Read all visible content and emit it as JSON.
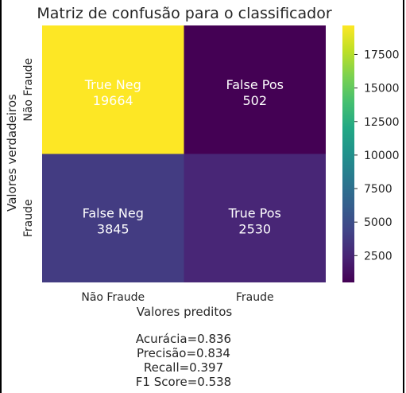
{
  "chart_data": {
    "type": "heatmap",
    "title": "Matriz de confusão para o classificador",
    "xlabel": "Valores preditos",
    "ylabel": "Valores verdadeiros",
    "x_categories": [
      "Não Fraude",
      "Fraude"
    ],
    "y_categories": [
      "Não Fraude",
      "Fraude"
    ],
    "cells": [
      {
        "row": 0,
        "col": 0,
        "label": "True Neg",
        "value": 19664,
        "display": "19664"
      },
      {
        "row": 0,
        "col": 1,
        "label": "False Pos",
        "value": 502,
        "display": "502"
      },
      {
        "row": 1,
        "col": 0,
        "label": "False Neg",
        "value": 3845,
        "display": "3845"
      },
      {
        "row": 1,
        "col": 1,
        "label": "True Pos",
        "value": 2530,
        "display": "2530"
      }
    ],
    "colormap": "viridis",
    "colorbar": {
      "vmin": 502,
      "vmax": 19664,
      "ticks": [
        2500,
        5000,
        7500,
        10000,
        12500,
        15000,
        17500
      ],
      "tick_labels": [
        "2500",
        "5000",
        "7500",
        "10000",
        "12500",
        "15000",
        "17500"
      ]
    },
    "grid": false
  },
  "metrics": {
    "accuracy": "Acurácia=0.836",
    "precision": "Precisão=0.834",
    "recall": "Recall=0.397",
    "f1": "F1 Score=0.538"
  }
}
